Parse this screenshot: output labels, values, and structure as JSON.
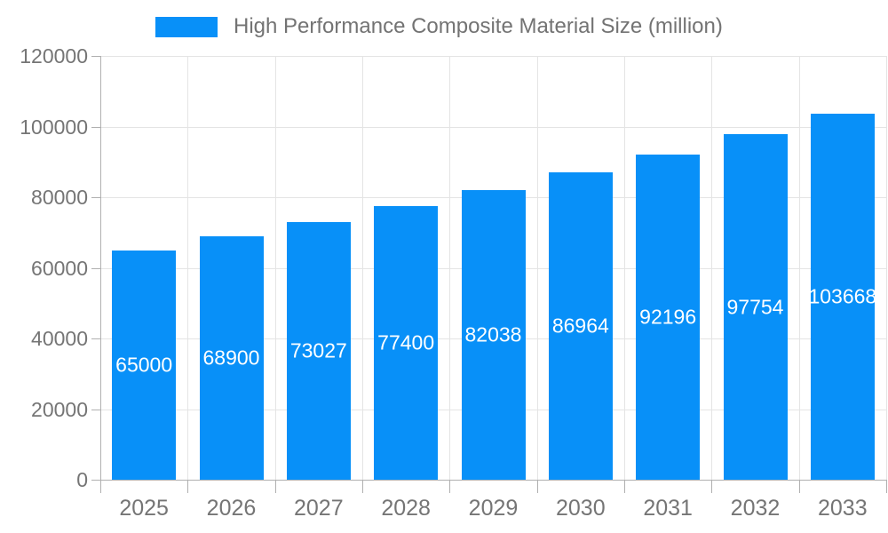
{
  "chart_data": {
    "type": "bar",
    "title": "High Performance Composite Material Size (million)",
    "series_name": "High Performance Composite Material Size (million)",
    "categories": [
      "2025",
      "2026",
      "2027",
      "2028",
      "2029",
      "2030",
      "2031",
      "2032",
      "2033"
    ],
    "values": [
      65000,
      68900,
      73027,
      77400,
      82038,
      86964,
      92196,
      97754,
      103668
    ],
    "value_labels": [
      "65000",
      "68900",
      "73027",
      "77400",
      "82038",
      "86964",
      "92196",
      "97754",
      "103668"
    ],
    "ytick_labels": [
      "0",
      "20000",
      "40000",
      "60000",
      "80000",
      "100000",
      "120000"
    ],
    "ylim": [
      0,
      120000
    ],
    "ytick_step": 20000,
    "xlabel": "",
    "ylabel": "",
    "grid": true,
    "legend_position": "top",
    "colors": {
      "bar": "#0890f8",
      "axis": "#b0b0b0",
      "gridline": "#e4e4e4",
      "tick_text": "#757575",
      "title_text": "#737373",
      "value_text": "#ffffff"
    }
  }
}
